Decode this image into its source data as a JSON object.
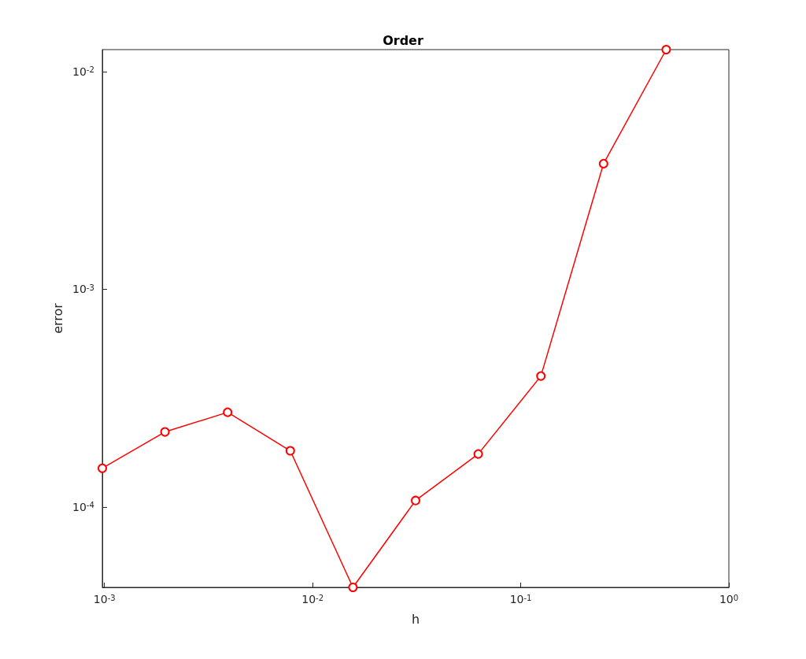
{
  "chart_data": {
    "type": "line",
    "title": "Order",
    "xlabel": "h",
    "ylabel": "error",
    "log": "xy",
    "grid": false,
    "marker": "circle",
    "line_style": "solid",
    "xlim": [
      0.0009765625,
      1
    ],
    "xticks": [
      {
        "value": 0.001,
        "label": "10$^{-3}$"
      },
      {
        "value": 0.01,
        "label": "10$^{-2}$"
      },
      {
        "value": 0.1,
        "label": "10$^{-1}$"
      },
      {
        "value": 1,
        "label": "10$^{0}$"
      }
    ],
    "ylim": [
      4.27e-05,
      0.0126
    ],
    "yticks": [
      {
        "value": 0.0001,
        "label": "10$^{-4}$"
      },
      {
        "value": 0.001,
        "label": "10$^{-3}$"
      },
      {
        "value": 0.01,
        "label": "10$^{-2}$"
      }
    ],
    "x": [
      0.0009765625,
      0.001953125,
      0.00390625,
      0.0078125,
      0.015625,
      0.03125,
      0.0625,
      0.125,
      0.25,
      0.5
    ],
    "series": [
      {
        "color": "#ff0000",
        "values": [
          0.0001505,
          0.000221,
          0.000272,
          0.000181,
          4.27e-05,
          0.000107,
          0.000175,
          0.000399,
          0.00377,
          0.0126
        ]
      }
    ]
  }
}
